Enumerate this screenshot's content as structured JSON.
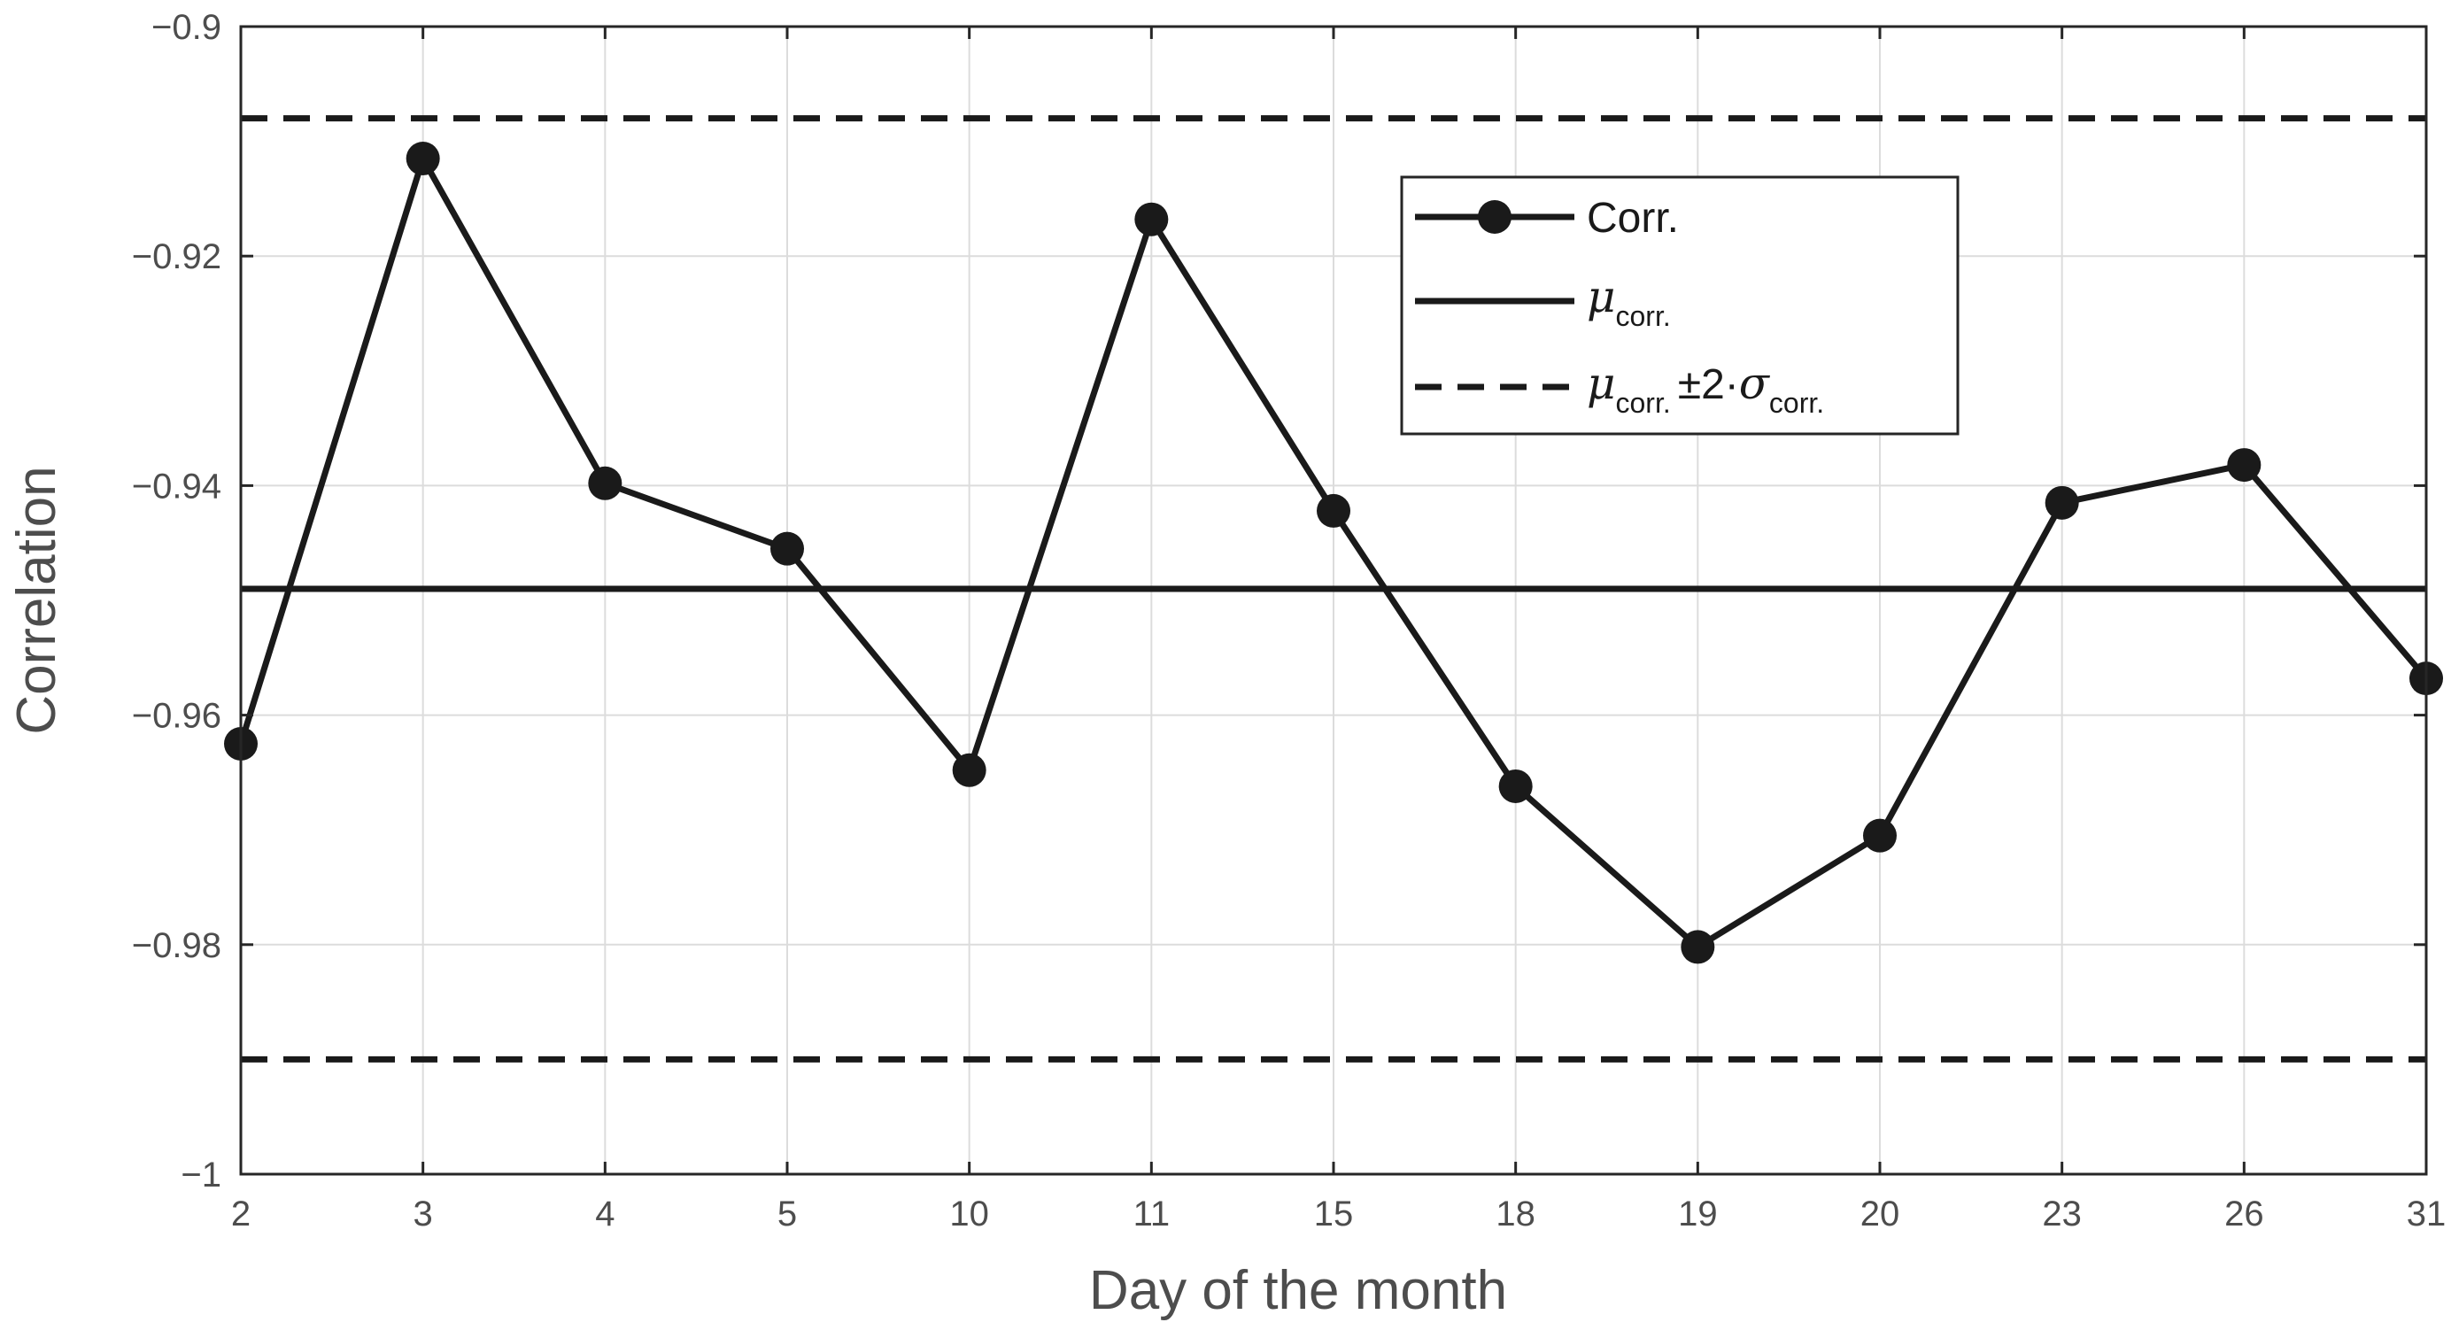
{
  "chart_data": {
    "type": "line",
    "categories": [
      "2",
      "3",
      "4",
      "5",
      "10",
      "11",
      "15",
      "18",
      "19",
      "20",
      "23",
      "26",
      "31"
    ],
    "series": [
      {
        "name": "Corr.",
        "values": [
          -0.9625,
          -0.9115,
          -0.9398,
          -0.9455,
          -0.9648,
          -0.9168,
          -0.9422,
          -0.9662,
          -0.9802,
          -0.9705,
          -0.9415,
          -0.9382,
          -0.9568
        ]
      }
    ],
    "mean": -0.949,
    "upper_band": -0.908,
    "lower_band": -0.99,
    "ylim": [
      -1,
      -0.9
    ],
    "yticks": [
      -1,
      -0.98,
      -0.96,
      -0.94,
      -0.92,
      -0.9
    ],
    "ytick_labels": [
      "−1",
      "−0.98",
      "−0.96",
      "−0.94",
      "−0.92",
      "−0.9"
    ],
    "xlabel": "Day of the month",
    "ylabel": "Correlation",
    "grid": true,
    "legend": {
      "position": "top-right",
      "corr_label": "Corr.",
      "mu_symbol": "μ",
      "corr_sub": "corr.",
      "band_op": "±2·",
      "sigma_symbol": "σ"
    },
    "colors": {
      "line": "#1a1a1a",
      "grid": "#dcdcdc",
      "axis": "#262626",
      "text": "#4d4d4d"
    }
  }
}
